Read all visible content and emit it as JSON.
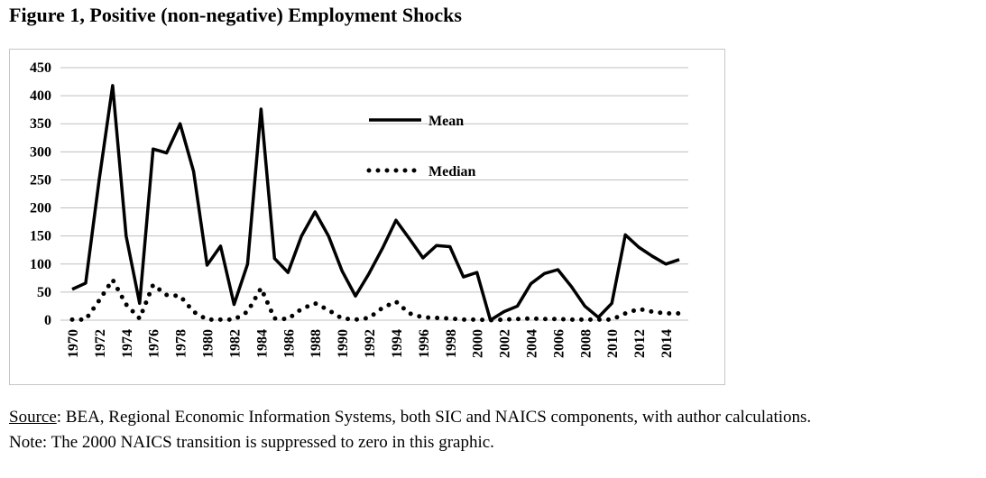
{
  "title": "Figure 1, Positive (non-negative) Employment Shocks",
  "source": {
    "label": "Source",
    "text": ": BEA, Regional Economic Information Systems, both SIC and NAICS components, with author calculations."
  },
  "note": "Note: The 2000 NAICS transition is suppressed to zero in this graphic.",
  "chart_data": {
    "type": "line",
    "title": "",
    "xlabel": "",
    "ylabel": "",
    "ylim": [
      0,
      450
    ],
    "yticks": [
      0,
      50,
      100,
      150,
      200,
      250,
      300,
      350,
      400,
      450
    ],
    "grid": "horizontal",
    "legend_position": "upper-center",
    "x": [
      1970,
      1971,
      1972,
      1973,
      1974,
      1975,
      1976,
      1977,
      1978,
      1979,
      1980,
      1981,
      1982,
      1983,
      1984,
      1985,
      1986,
      1987,
      1988,
      1989,
      1990,
      1991,
      1992,
      1993,
      1994,
      1995,
      1996,
      1997,
      1998,
      1999,
      2000,
      2001,
      2002,
      2003,
      2004,
      2005,
      2006,
      2007,
      2008,
      2009,
      2010,
      2011,
      2012,
      2013,
      2014,
      2015
    ],
    "xtick_labels": [
      "1970",
      "1972",
      "1974",
      "1976",
      "1978",
      "1980",
      "1982",
      "1984",
      "1986",
      "1988",
      "1990",
      "1992",
      "1994",
      "1996",
      "1998",
      "2000",
      "2002",
      "2004",
      "2006",
      "2008",
      "2010",
      "2012",
      "2014"
    ],
    "series": [
      {
        "name": "Mean",
        "style": "solid",
        "color": "#000000",
        "values": [
          55,
          66,
          250,
          418,
          150,
          30,
          305,
          298,
          350,
          265,
          98,
          132,
          28,
          100,
          376,
          110,
          85,
          150,
          193,
          150,
          88,
          43,
          83,
          128,
          178,
          145,
          111,
          133,
          131,
          77,
          85,
          0,
          15,
          25,
          65,
          83,
          90,
          60,
          25,
          5,
          30,
          152,
          130,
          114,
          100,
          108
        ]
      },
      {
        "name": "Median",
        "style": "dotted",
        "color": "#000000",
        "values": [
          1,
          1,
          35,
          72,
          28,
          3,
          63,
          45,
          43,
          15,
          1,
          1,
          1,
          15,
          57,
          3,
          2,
          20,
          30,
          18,
          3,
          1,
          4,
          22,
          33,
          12,
          5,
          4,
          3,
          1,
          1,
          0,
          1,
          2,
          3,
          2,
          2,
          1,
          1,
          1,
          1,
          12,
          20,
          15,
          12,
          12
        ]
      }
    ]
  }
}
